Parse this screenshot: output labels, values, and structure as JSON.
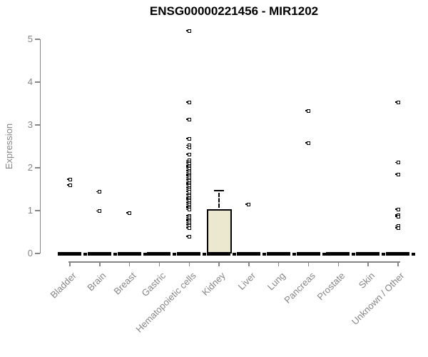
{
  "chart_data": {
    "type": "boxplot",
    "title": "ENSG00000221456 - MIR1202",
    "ylabel": "Expression",
    "xlabel": "",
    "ylim": [
      0,
      5
    ],
    "yticks": [
      0,
      1,
      2,
      3,
      4,
      5
    ],
    "grid": false,
    "legend": null,
    "box_fill_color": "#ece7cf",
    "axis_color": "#858585",
    "point_color": "#000000",
    "categories": [
      "Bladder",
      "Brain",
      "Breast",
      "Gastric",
      "Hematopoietic cells",
      "Kidney",
      "Liver",
      "Lung",
      "Pancreas",
      "Prostate",
      "Skin",
      "Unknown / Other"
    ],
    "boxes": [
      {
        "category": "Bladder",
        "q1": 0,
        "median": 0,
        "q3": 0,
        "whisker_low": 0,
        "whisker_high": 0,
        "outliers": [
          1.73,
          1.6
        ]
      },
      {
        "category": "Brain",
        "q1": 0,
        "median": 0,
        "q3": 0,
        "whisker_low": 0,
        "whisker_high": 0,
        "outliers": [
          1.44,
          0.99
        ]
      },
      {
        "category": "Breast",
        "q1": 0,
        "median": 0,
        "q3": 0,
        "whisker_low": 0,
        "whisker_high": 0,
        "outliers": [
          0.95
        ]
      },
      {
        "category": "Gastric",
        "q1": 0,
        "median": 0,
        "q3": 0,
        "whisker_low": 0,
        "whisker_high": 0,
        "outliers": []
      },
      {
        "category": "Hematopoietic cells",
        "q1": 0,
        "median": 0,
        "q3": 0,
        "whisker_low": 0,
        "whisker_high": 0,
        "outliers": [
          5.2,
          3.53,
          3.13,
          2.68,
          2.52,
          2.47,
          2.31,
          2.17,
          2.13,
          2.09,
          2.05,
          2.01,
          1.97,
          1.93,
          1.89,
          1.85,
          1.81,
          1.77,
          1.73,
          1.69,
          1.65,
          1.61,
          1.57,
          1.53,
          1.49,
          1.45,
          1.38,
          1.34,
          1.3,
          1.26,
          1.22,
          1.18,
          1.14,
          1.1,
          1.06,
          1.02,
          0.88,
          0.84,
          0.8,
          0.76,
          0.72,
          0.68,
          0.64,
          0.6,
          0.4
        ]
      },
      {
        "category": "Kidney",
        "q1": 0,
        "median": 0,
        "q3": 1.03,
        "whisker_low": 0,
        "whisker_high": 1.47,
        "outliers": []
      },
      {
        "category": "Liver",
        "q1": 0,
        "median": 0,
        "q3": 0,
        "whisker_low": 0,
        "whisker_high": 0,
        "outliers": [
          1.15
        ]
      },
      {
        "category": "Lung",
        "q1": 0,
        "median": 0,
        "q3": 0,
        "whisker_low": 0,
        "whisker_high": 0,
        "outliers": []
      },
      {
        "category": "Pancreas",
        "q1": 0,
        "median": 0,
        "q3": 0,
        "whisker_low": 0,
        "whisker_high": 0,
        "outliers": [
          3.33,
          2.58
        ]
      },
      {
        "category": "Prostate",
        "q1": 0,
        "median": 0,
        "q3": 0,
        "whisker_low": 0,
        "whisker_high": 0,
        "outliers": []
      },
      {
        "category": "Skin",
        "q1": 0,
        "median": 0,
        "q3": 0,
        "whisker_low": 0,
        "whisker_high": 0,
        "outliers": []
      },
      {
        "category": "Unknown / Other",
        "q1": 0,
        "median": 0,
        "q3": 0,
        "whisker_low": 0,
        "whisker_high": 0,
        "outliers": [
          3.53,
          2.12,
          1.85,
          1.03,
          0.9,
          0.86,
          0.64,
          0.6
        ]
      }
    ]
  }
}
